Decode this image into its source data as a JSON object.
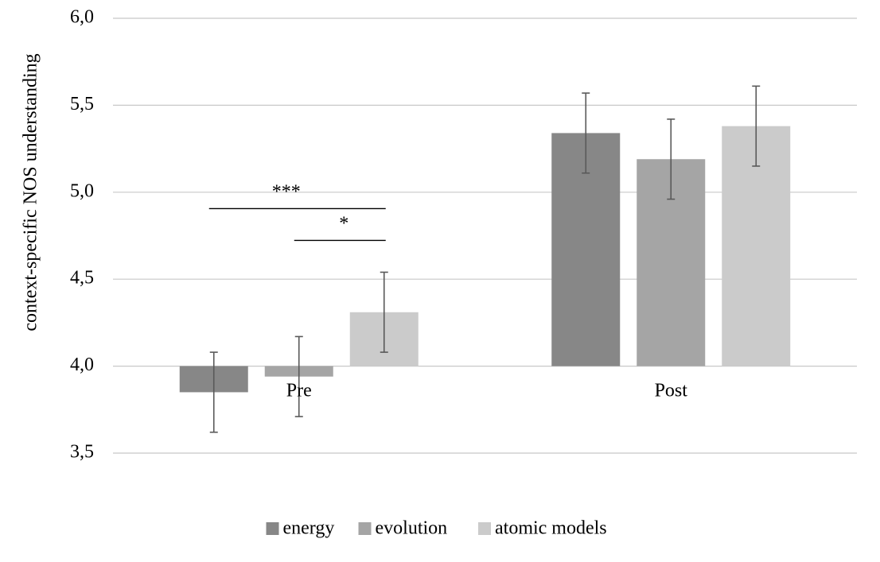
{
  "chart_data": {
    "type": "bar",
    "ylabel": "context-specific NOS understanding",
    "xlabel": "",
    "ylim": [
      3.5,
      6.0
    ],
    "yticks": [
      3.5,
      4.0,
      4.5,
      5.0,
      5.5,
      6.0
    ],
    "ytick_labels": [
      "3,5",
      "4,0",
      "4,5",
      "5,0",
      "5,5",
      "6,0"
    ],
    "baseline": 4.0,
    "grid": true,
    "legend_position": "bottom",
    "categories": [
      "Pre",
      "Post"
    ],
    "series": [
      {
        "name": "energy",
        "color": "#878787",
        "values": [
          3.85,
          5.34
        ],
        "errors": [
          0.23,
          0.23
        ]
      },
      {
        "name": "evolution",
        "color": "#a5a5a5",
        "values": [
          3.94,
          5.19
        ],
        "errors": [
          0.23,
          0.23
        ]
      },
      {
        "name": "atomic models",
        "color": "#cbcbcb",
        "values": [
          4.31,
          5.38
        ],
        "errors": [
          0.23,
          0.23
        ]
      }
    ],
    "annotations": [
      {
        "label": "*",
        "category": "Pre",
        "from_series": "evolution",
        "to_series": "atomic models"
      },
      {
        "label": "***",
        "category": "Pre",
        "from_series": "energy",
        "to_series": "atomic models"
      }
    ]
  }
}
